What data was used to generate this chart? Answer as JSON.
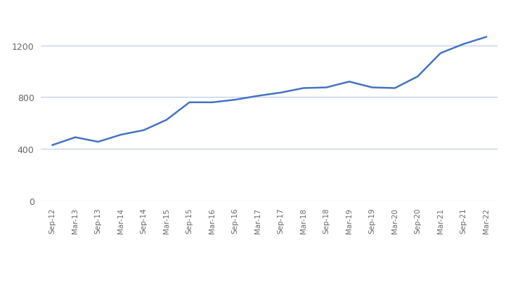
{
  "x_labels": [
    "Sep-12",
    "Mar-13",
    "Sep-13",
    "Mar-14",
    "Sep-14",
    "Mar-15",
    "Sep-15",
    "Mar-16",
    "Sep-16",
    "Mar-17",
    "Sep-17",
    "Mar-18",
    "Sep-18",
    "Mar-19",
    "Sep-19",
    "Mar-20",
    "Sep-20",
    "Mar-21",
    "Sep-21",
    "Mar-22"
  ],
  "values": [
    430,
    490,
    455,
    510,
    545,
    625,
    760,
    760,
    780,
    810,
    835,
    870,
    875,
    920,
    875,
    870,
    960,
    1140,
    1210,
    1265
  ],
  "line_color": "#4472C4",
  "line_width": 1.8,
  "background_color": "#ffffff",
  "grid_color": "#b8c8e8",
  "yticks": [
    0,
    400,
    800,
    1200
  ],
  "ylim": [
    0,
    1400
  ],
  "xlabel": "",
  "ylabel": ""
}
